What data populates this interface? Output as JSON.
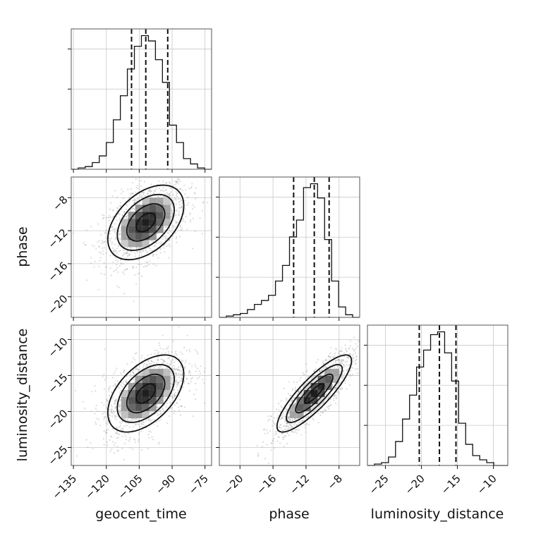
{
  "chart_data": {
    "type": "scatter",
    "title": "",
    "parameters": [
      {
        "name": "geocent_time",
        "label": "geocent_time",
        "median": -102,
        "q16": -108.5,
        "q84": -92,
        "ticks": [
          -135,
          -120,
          -105,
          -90,
          -75
        ],
        "range": [
          -136,
          -72
        ]
      },
      {
        "name": "phase",
        "label": "phase",
        "median": -11,
        "q16": -13.5,
        "q84": -9.2,
        "ticks": [
          -20,
          -16,
          -12,
          -8
        ],
        "range": [
          -22.5,
          -5.5
        ]
      },
      {
        "name": "luminosity_distance",
        "label": "luminosity_distance",
        "median": -17.5,
        "q16": -20.3,
        "q84": -15.2,
        "ticks": [
          -25,
          -20,
          -15,
          -10
        ],
        "range": [
          -27.5,
          -8
        ]
      }
    ],
    "histograms": {
      "geocent_time": {
        "edges": [
          -136,
          -132.8,
          -129.6,
          -126.4,
          -123.2,
          -120,
          -116.8,
          -113.6,
          -110.4,
          -107.2,
          -104,
          -100.8,
          -97.6,
          -94.4,
          -91.2,
          -88,
          -84.8,
          -81.6,
          -78.4,
          -75.2,
          -72
        ],
        "counts": [
          0,
          1,
          2,
          5,
          10,
          20,
          37,
          55,
          75,
          92,
          100,
          96,
          82,
          65,
          33,
          20,
          8,
          4,
          1,
          0
        ]
      },
      "phase": {
        "edges": [
          -22.5,
          -21.65,
          -20.8,
          -19.95,
          -19.1,
          -18.25,
          -17.4,
          -16.55,
          -15.7,
          -14.85,
          -14.0,
          -13.15,
          -12.3,
          -11.45,
          -10.6,
          -9.75,
          -8.9,
          -8.05,
          -7.2,
          -6.35,
          -5.5
        ],
        "counts": [
          0,
          1,
          2,
          3,
          6,
          10,
          13,
          17,
          28,
          40,
          62,
          75,
          100,
          103,
          92,
          60,
          28,
          8,
          2,
          0
        ]
      },
      "luminosity_distance": {
        "edges": [
          -27.5,
          -26.525,
          -25.55,
          -24.575,
          -23.6,
          -22.625,
          -21.65,
          -20.675,
          -19.7,
          -18.725,
          -17.75,
          -16.775,
          -15.8,
          -14.825,
          -13.85,
          -12.875,
          -11.9,
          -10.925,
          -9.95,
          -8.975,
          -8.0
        ],
        "counts": [
          0,
          1,
          2,
          6,
          17,
          33,
          50,
          70,
          82,
          93,
          95,
          80,
          60,
          30,
          15,
          7,
          4,
          2,
          0,
          0
        ]
      }
    },
    "pairs": [
      {
        "x": "geocent_time",
        "y": "phase",
        "correlation": 0.45
      },
      {
        "x": "geocent_time",
        "y": "luminosity_distance",
        "correlation": 0.5
      },
      {
        "x": "phase",
        "y": "luminosity_distance",
        "correlation": 0.85
      }
    ],
    "contour_levels": [
      0.5,
      1.0,
      1.5,
      2.0
    ],
    "grid": true,
    "legend": "none"
  }
}
